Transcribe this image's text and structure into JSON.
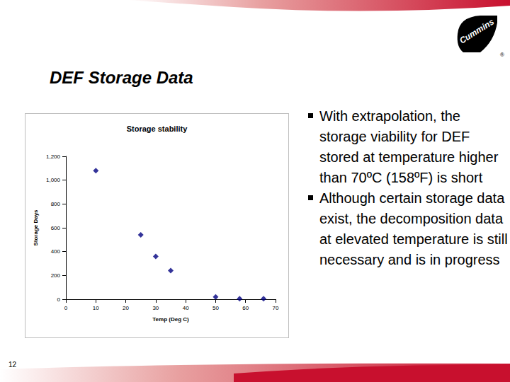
{
  "slide": {
    "title": "DEF Storage Data",
    "bullets": [
      "With extrapolation, the storage viability for DEF stored at temperature higher than 70ºC (158ºF) is short",
      "Although certain storage data exist, the decomposition data at elevated temperature is still necessary and is in progress"
    ],
    "page_number": "12",
    "logo_text": "Cummins",
    "logo_mark": "®"
  },
  "chart_data": {
    "type": "scatter",
    "title": "Storage stability",
    "x_label": "Temp (Deg C)",
    "y_label": "Storage Days",
    "x": [
      10,
      25,
      30,
      35,
      50,
      58,
      66
    ],
    "values": [
      1080,
      540,
      360,
      240,
      20,
      5,
      5
    ],
    "color": "#000080",
    "marker": "diamond",
    "xlim": [
      0,
      70
    ],
    "xticks": [
      0,
      10,
      20,
      30,
      40,
      50,
      60,
      70
    ],
    "ylim": [
      0,
      1200
    ],
    "yticks": [
      0,
      200,
      400,
      600,
      800,
      1000,
      1200
    ],
    "grid": false
  }
}
